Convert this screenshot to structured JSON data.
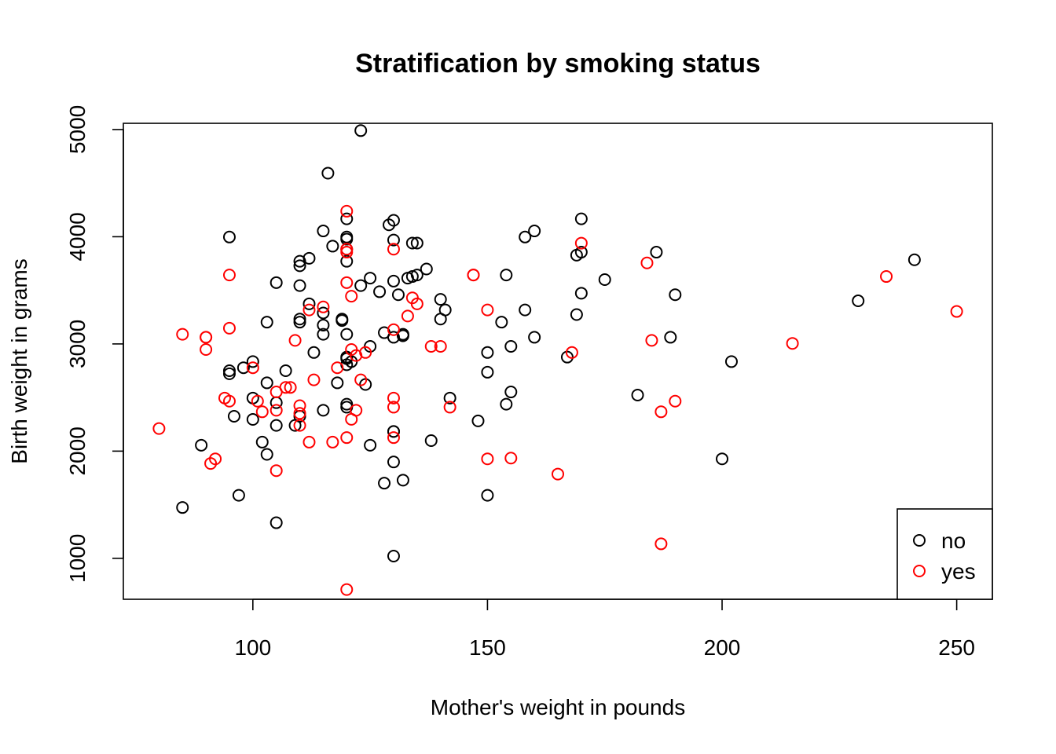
{
  "chart_data": {
    "type": "scatter",
    "title": "Stratification by smoking status",
    "xlabel": "Mother's weight in pounds",
    "ylabel": "Birth weight in grams",
    "xlim": [
      72.4,
      257.6
    ],
    "ylim": [
      618,
      5058
    ],
    "x_ticks": [
      100,
      150,
      200,
      250
    ],
    "y_ticks": [
      1000,
      2000,
      3000,
      4000,
      5000
    ],
    "grid": false,
    "legend_position": "bottom-right",
    "series": [
      {
        "name": "no",
        "color": "#000000",
        "points": [
          [
            123,
            4990
          ],
          [
            116,
            4593
          ],
          [
            95,
            3997
          ],
          [
            120,
            3997
          ],
          [
            120,
            3977
          ],
          [
            129,
            4111
          ],
          [
            130,
            4153
          ],
          [
            120,
            4167
          ],
          [
            115,
            4054
          ],
          [
            130,
            3969
          ],
          [
            134,
            3941
          ],
          [
            135,
            3941
          ],
          [
            160,
            4054
          ],
          [
            158,
            3997
          ],
          [
            170,
            4167
          ],
          [
            117,
            3912
          ],
          [
            120,
            3884
          ],
          [
            112,
            3799
          ],
          [
            110,
            3771
          ],
          [
            110,
            3729
          ],
          [
            120,
            3771
          ],
          [
            137,
            3699
          ],
          [
            133,
            3614
          ],
          [
            134,
            3629
          ],
          [
            135,
            3643
          ],
          [
            125,
            3614
          ],
          [
            123,
            3544
          ],
          [
            130,
            3586
          ],
          [
            105,
            3572
          ],
          [
            110,
            3544
          ],
          [
            127,
            3487
          ],
          [
            131,
            3459
          ],
          [
            112,
            3374
          ],
          [
            115,
            3289
          ],
          [
            110,
            3232
          ],
          [
            110,
            3203
          ],
          [
            115,
            3175
          ],
          [
            119,
            3232
          ],
          [
            119,
            3218
          ],
          [
            128,
            3105
          ],
          [
            130,
            3062
          ],
          [
            132,
            3090
          ],
          [
            132,
            3076
          ],
          [
            115,
            3090
          ],
          [
            113,
            2920
          ],
          [
            120,
            3090
          ],
          [
            120,
            2877
          ],
          [
            120,
            2863
          ],
          [
            121,
            2835
          ],
          [
            120,
            2806
          ],
          [
            125,
            2977
          ],
          [
            124,
            2622
          ],
          [
            103,
            3203
          ],
          [
            100,
            2835
          ],
          [
            98,
            2778
          ],
          [
            95,
            2750
          ],
          [
            95,
            2722
          ],
          [
            107,
            2750
          ],
          [
            103,
            2637
          ],
          [
            118,
            2637
          ],
          [
            100,
            2495
          ],
          [
            105,
            2452
          ],
          [
            120,
            2438
          ],
          [
            120,
            2410
          ],
          [
            96,
            2325
          ],
          [
            100,
            2296
          ],
          [
            105,
            2240
          ],
          [
            109,
            2240
          ],
          [
            110,
            2325
          ],
          [
            115,
            2381
          ],
          [
            102,
            2084
          ],
          [
            103,
            1970
          ],
          [
            89,
            2055
          ],
          [
            85,
            1474
          ],
          [
            97,
            1588
          ],
          [
            105,
            1332
          ],
          [
            125,
            2055
          ],
          [
            130,
            2183
          ],
          [
            130,
            2183
          ],
          [
            130,
            1899
          ],
          [
            132,
            1729
          ],
          [
            128,
            1701
          ],
          [
            130,
            1021
          ],
          [
            138,
            2098
          ],
          [
            142,
            2495
          ],
          [
            141,
            3317
          ],
          [
            140,
            3416
          ],
          [
            140,
            3232
          ],
          [
            148,
            2282
          ],
          [
            150,
            2920
          ],
          [
            150,
            2736
          ],
          [
            150,
            1588
          ],
          [
            153,
            3203
          ],
          [
            154,
            3643
          ],
          [
            155,
            2977
          ],
          [
            155,
            2552
          ],
          [
            154,
            2438
          ],
          [
            158,
            3317
          ],
          [
            160,
            3062
          ],
          [
            167,
            2877
          ],
          [
            169,
            3828
          ],
          [
            169,
            3274
          ],
          [
            170,
            3856
          ],
          [
            170,
            3473
          ],
          [
            175,
            3600
          ],
          [
            182,
            2523
          ],
          [
            186,
            3856
          ],
          [
            189,
            3062
          ],
          [
            190,
            3459
          ],
          [
            200,
            1928
          ],
          [
            202,
            2835
          ],
          [
            229,
            3402
          ],
          [
            241,
            3785
          ]
        ]
      },
      {
        "name": "yes",
        "color": "#ff0000",
        "points": [
          [
            120,
            4238
          ],
          [
            120,
            3884
          ],
          [
            120,
            3856
          ],
          [
            130,
            3884
          ],
          [
            120,
            3572
          ],
          [
            121,
            3445
          ],
          [
            115,
            3345
          ],
          [
            112,
            3317
          ],
          [
            109,
            3033
          ],
          [
            121,
            2948
          ],
          [
            122,
            2892
          ],
          [
            124,
            2920
          ],
          [
            123,
            2665
          ],
          [
            118,
            2778
          ],
          [
            113,
            2665
          ],
          [
            107,
            2594
          ],
          [
            108,
            2594
          ],
          [
            105,
            2552
          ],
          [
            100,
            2778
          ],
          [
            101,
            2466
          ],
          [
            102,
            2367
          ],
          [
            105,
            2381
          ],
          [
            110,
            2424
          ],
          [
            110,
            2353
          ],
          [
            110,
            2240
          ],
          [
            112,
            2084
          ],
          [
            117,
            2084
          ],
          [
            120,
            2126
          ],
          [
            121,
            2297
          ],
          [
            122,
            2381
          ],
          [
            130,
            2495
          ],
          [
            130,
            2410
          ],
          [
            130,
            2126
          ],
          [
            130,
            3133
          ],
          [
            133,
            3260
          ],
          [
            134,
            3430
          ],
          [
            135,
            3374
          ],
          [
            138,
            2977
          ],
          [
            140,
            2977
          ],
          [
            142,
            2410
          ],
          [
            147,
            3643
          ],
          [
            147,
            3643
          ],
          [
            150,
            3317
          ],
          [
            150,
            1928
          ],
          [
            155,
            1935
          ],
          [
            165,
            1786
          ],
          [
            168,
            2920
          ],
          [
            170,
            3940
          ],
          [
            184,
            3756
          ],
          [
            185,
            3033
          ],
          [
            187,
            2367
          ],
          [
            187,
            1135
          ],
          [
            190,
            2466
          ],
          [
            215,
            3005
          ],
          [
            235,
            3629
          ],
          [
            250,
            3303
          ],
          [
            95,
            3643
          ],
          [
            95,
            3147
          ],
          [
            94,
            2495
          ],
          [
            95,
            2466
          ],
          [
            90,
            3062
          ],
          [
            90,
            3062
          ],
          [
            90,
            2948
          ],
          [
            85,
            3090
          ],
          [
            80,
            2211
          ],
          [
            91,
            1885
          ],
          [
            92,
            1928
          ],
          [
            105,
            1818
          ],
          [
            120,
            709
          ]
        ]
      }
    ]
  }
}
